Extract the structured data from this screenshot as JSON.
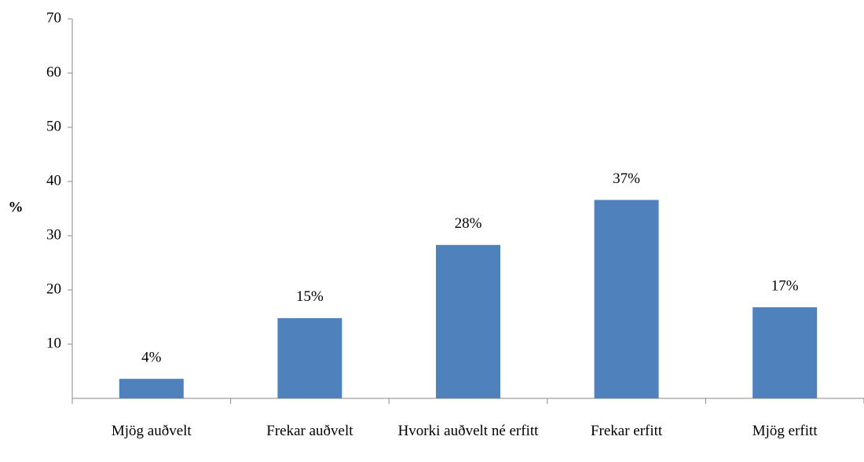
{
  "chart_data": {
    "type": "bar",
    "ylabel": "%",
    "categories": [
      "Mjög auðvelt",
      "Frekar auðvelt",
      "Hvorki auðvelt né erfitt",
      "Frekar erfitt",
      "Mjög erfitt"
    ],
    "values": [
      3.6,
      14.8,
      28.3,
      36.6,
      16.8
    ],
    "value_labels": [
      "4%",
      "15%",
      "28%",
      "37%",
      "17%"
    ],
    "color": "#4f81bd",
    "ylim": [
      0,
      70
    ],
    "yticks": [
      10,
      20,
      30,
      40,
      50,
      60,
      70
    ],
    "grid": false
  }
}
